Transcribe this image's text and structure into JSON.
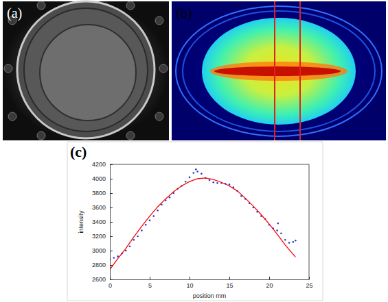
{
  "figure": {
    "panels": [
      {
        "label": "(a)"
      },
      {
        "label": "(b)"
      }
    ]
  },
  "chart_data": {
    "type": "scatter",
    "panel_label": "(c)",
    "x_label": "position mm",
    "y_label": "intensity",
    "xlim": [
      0,
      25
    ],
    "ylim": [
      2600,
      4200
    ],
    "xticks": [
      0,
      5,
      10,
      15,
      20,
      25
    ],
    "yticks": [
      2600,
      2800,
      3000,
      3200,
      3400,
      3600,
      3800,
      4000,
      4200
    ],
    "grid": false,
    "series": [
      {
        "type": "scatter",
        "color": "#1f3fd0",
        "marker": "dot",
        "x": [
          0,
          0.5,
          1,
          1.5,
          2,
          2.5,
          3,
          3.5,
          4,
          4.5,
          5,
          5.5,
          6,
          6.5,
          7,
          7.5,
          8,
          8.5,
          9,
          9.5,
          10,
          10.5,
          10.8,
          11,
          11.5,
          12,
          12.5,
          13,
          13.5,
          14,
          14.5,
          15,
          15.5,
          16,
          16.5,
          17,
          17.5,
          18,
          18.5,
          19,
          19.5,
          20,
          20.5,
          21,
          21.1,
          21.5,
          22,
          22.5,
          23,
          23.3
        ],
        "values": [
          2880,
          2900,
          2920,
          2960,
          3000,
          3060,
          3150,
          3200,
          3280,
          3360,
          3420,
          3480,
          3560,
          3640,
          3700,
          3740,
          3800,
          3860,
          3900,
          3960,
          4020,
          4080,
          4130,
          4100,
          4070,
          4010,
          3980,
          3950,
          3940,
          3940,
          3930,
          3920,
          3880,
          3830,
          3760,
          3720,
          3660,
          3600,
          3540,
          3480,
          3440,
          3360,
          3310,
          3280,
          3380,
          3240,
          3150,
          3110,
          3120,
          3140
        ]
      },
      {
        "type": "line",
        "color": "#ff0000",
        "line_style": "solid",
        "x": [
          0,
          1,
          2,
          3,
          4,
          5,
          6,
          7,
          8,
          9,
          10,
          11,
          12,
          13,
          14,
          15,
          16,
          17,
          18,
          19,
          20,
          21,
          22,
          23.3
        ],
        "values": [
          2740,
          2890,
          3030,
          3190,
          3340,
          3480,
          3610,
          3720,
          3820,
          3900,
          3960,
          4000,
          4010,
          3990,
          3950,
          3900,
          3830,
          3730,
          3620,
          3500,
          3370,
          3230,
          3080,
          2910
        ]
      }
    ]
  }
}
